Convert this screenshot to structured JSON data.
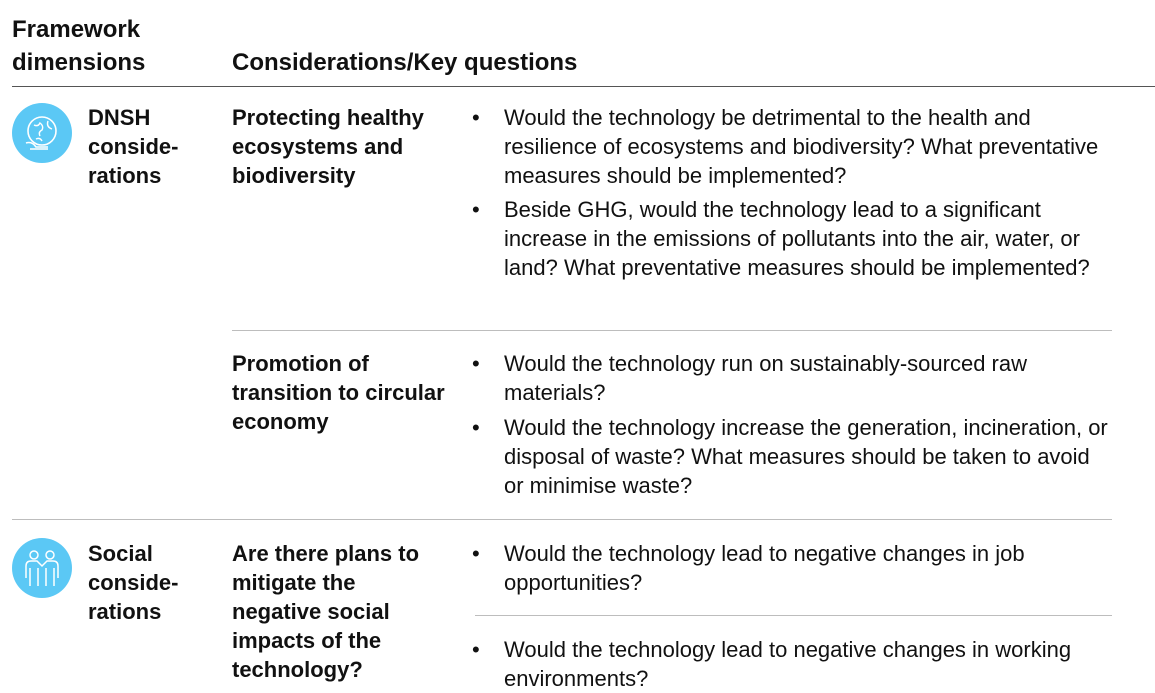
{
  "header": {
    "col1": "Framework dimensions",
    "col2": "Considerations/Key questions"
  },
  "rows": [
    {
      "dimension": "DNSH conside-rations",
      "subsections": [
        {
          "title": "Protecting healthy ecosystems and biodiversity",
          "questions": [
            "Would the technology be detrimental to the health and resilience of ecosystems and biodiversity? What preventative measures should be implemented?",
            "Beside GHG, would the technology lead to a significant increase in the emissions of pollutants into the air, water, or land? What preventative measures should be implemented?"
          ]
        },
        {
          "title": "Promotion of transition to circular economy",
          "questions": [
            "Would the technology run on sustainably-sourced raw materials?",
            "Would the technology increase the generation, incineration, or disposal of waste? What measures should be taken to avoid or minimise waste?"
          ]
        }
      ]
    },
    {
      "dimension": "Social conside-rations",
      "subsections": [
        {
          "title": "Are there plans to mitigate the negative social impacts of the technology?",
          "questions": [
            "Would the technology lead to negative changes in job opportunities?",
            "Would the technology lead to negative changes in working environments?"
          ]
        }
      ]
    }
  ]
}
